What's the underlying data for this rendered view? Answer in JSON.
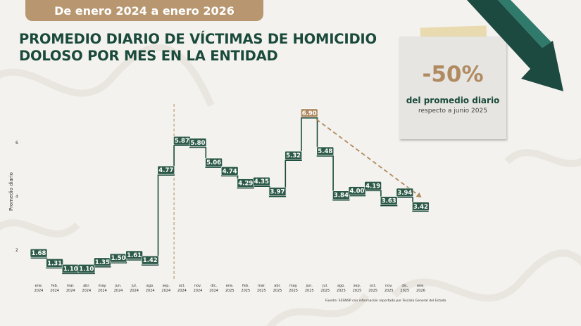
{
  "header": {
    "badge_text": "De enero 2024 a enero 2026"
  },
  "title": {
    "line1": "PROMEDIO DIARIO DE VÍCTIMAS DE HOMICIDIO",
    "line2": "DOLOSO POR MES EN LA ENTIDAD"
  },
  "callout": {
    "value": "-50%",
    "line1": "del promedio diario",
    "line2": "respecto a junio 2025"
  },
  "source": "Fuente: SESNSP con información reportada por Fiscalía General del Estado",
  "colors": {
    "green": "#1a4a3b",
    "gold": "#b08a60",
    "badge": "#b89770",
    "label_bg": "#2d5a48",
    "highlight": "#b08a60"
  },
  "chart_data": {
    "type": "step-line",
    "ylabel": "Promedio diario",
    "yticks": [
      2,
      4,
      6
    ],
    "ylim": [
      1.2,
      7.2
    ],
    "categories": [
      [
        "ene.",
        "2024"
      ],
      [
        "feb.",
        "2024"
      ],
      [
        "mar.",
        "2024"
      ],
      [
        "abr.",
        "2024"
      ],
      [
        "may.",
        "2024"
      ],
      [
        "jun.",
        "2024"
      ],
      [
        "jul.",
        "2024"
      ],
      [
        "ago.",
        "2024"
      ],
      [
        "sep.",
        "2024"
      ],
      [
        "oct.",
        "2024"
      ],
      [
        "nov.",
        "2024"
      ],
      [
        "dic.",
        "2024"
      ],
      [
        "ene.",
        "2025"
      ],
      [
        "feb.",
        "2025"
      ],
      [
        "mar.",
        "2025"
      ],
      [
        "abr.",
        "2025"
      ],
      [
        "may.",
        "2025"
      ],
      [
        "jun.",
        "2025"
      ],
      [
        "jul.",
        "2025"
      ],
      [
        "ago.",
        "2025"
      ],
      [
        "sep.",
        "2025"
      ],
      [
        "oct.",
        "2025"
      ],
      [
        "nov.",
        "2025"
      ],
      [
        "dic.",
        "2025"
      ],
      [
        "ene.",
        "2026"
      ]
    ],
    "values": [
      1.68,
      1.31,
      1.1,
      1.1,
      1.35,
      1.5,
      1.61,
      1.42,
      4.77,
      5.87,
      5.8,
      5.06,
      4.74,
      4.29,
      4.35,
      3.97,
      5.32,
      6.9,
      5.48,
      3.84,
      4.0,
      4.19,
      3.63,
      3.94,
      3.42
    ],
    "labels": [
      "1.68",
      "1.31",
      "1.10",
      "1.10",
      "1.35",
      "1.50",
      "1.61",
      "1.42",
      "4.77",
      "5.87",
      "5.80",
      "5.06",
      "4.74",
      "4.29",
      "4.35",
      "3.97",
      "5.32",
      "6.90",
      "5.48",
      "3.84",
      "4.00",
      "4.19",
      "3.63",
      "3.94",
      "3.42"
    ],
    "highlight_index": 17,
    "divider_after_index": 8,
    "trend_from_index": 17,
    "trend_to_index": 24
  }
}
